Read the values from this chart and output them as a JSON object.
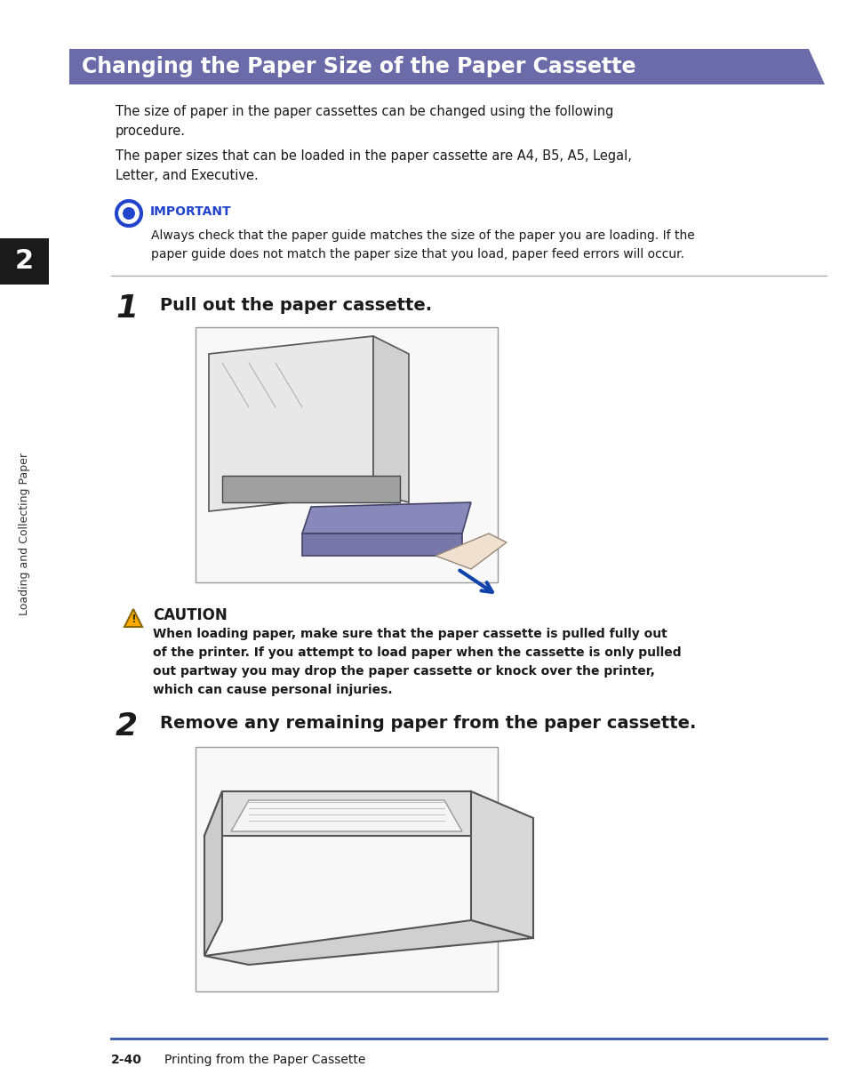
{
  "page_bg": "#ffffff",
  "header_bg": "#6b6baa",
  "header_text": "Changing the Paper Size of the Paper Cassette",
  "header_text_color": "#ffffff",
  "sidebar_bg": "#1a1a1a",
  "sidebar_text": "Loading and Collecting Paper",
  "sidebar_number": "2",
  "para1": "The size of paper in the paper cassettes can be changed using the following\nprocedure.",
  "para2": "The paper sizes that can be loaded in the paper cassette are A4, B5, A5, Legal,\nLetter, and Executive.",
  "important_label": "IMPORTANT",
  "important_color": "#2244cc",
  "important_text": "Always check that the paper guide matches the size of the paper you are loading. If the\npaper guide does not match the paper size that you load, paper feed errors will occur.",
  "step1_num": "1",
  "step1_text": "Pull out the paper cassette.",
  "step2_num": "2",
  "step2_text": "Remove any remaining paper from the paper cassette.",
  "caution_label": "CAUTION",
  "caution_text": "When loading paper, make sure that the paper cassette is pulled fully out\nof the printer. If you attempt to load paper when the cassette is only pulled\nout partway you may drop the paper cassette or knock over the printer,\nwhich can cause personal injuries.",
  "footer_text1": "2-40",
  "footer_text2": "Printing from the Paper Cassette",
  "footer_line_color": "#3355aa",
  "divider_color": "#aaaaaa",
  "img_border": "#888888",
  "img_bg": "#ffffff"
}
